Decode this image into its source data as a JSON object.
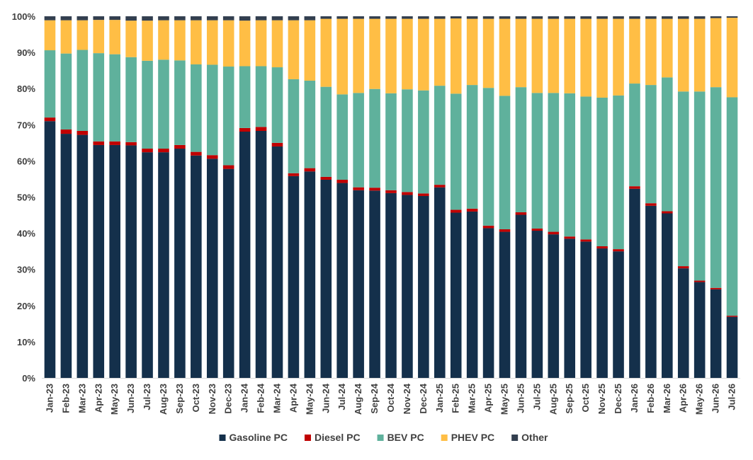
{
  "chart_data": {
    "type": "bar",
    "stacked": true,
    "normalized": true,
    "title": "",
    "xlabel": "",
    "ylabel": "",
    "ylim": [
      0,
      100
    ],
    "yticks": [
      "0%",
      "10%",
      "20%",
      "30%",
      "40%",
      "50%",
      "60%",
      "70%",
      "80%",
      "90%",
      "100%"
    ],
    "grid": false,
    "legend_position": "bottom",
    "categories": [
      "Jan-23",
      "Feb-23",
      "Mar-23",
      "Apr-23",
      "May-23",
      "Jun-23",
      "Jul-23",
      "Aug-23",
      "Sep-23",
      "Oct-23",
      "Nov-23",
      "Dec-23",
      "Jan-24",
      "Feb-24",
      "Mar-24",
      "Apr-24",
      "May-24",
      "Jun-24",
      "Jul-24",
      "Aug-24",
      "Sep-24",
      "Oct-24",
      "Nov-24",
      "Dec-24",
      "Jan-25",
      "Feb-25",
      "Mar-25",
      "Apr-25",
      "May-25",
      "Jun-25",
      "Jul-25",
      "Aug-25",
      "Sep-25",
      "Oct-25",
      "Nov-25",
      "Dec-25",
      "Jan-26",
      "Feb-26",
      "Mar-26",
      "Apr-26",
      "May-26",
      "Jun-26",
      "Jul-26"
    ],
    "series": [
      {
        "name": "Gasoline PC",
        "color": "#14304b",
        "values": [
          71.0,
          67.5,
          67.2,
          64.4,
          64.4,
          64.3,
          62.4,
          62.4,
          63.4,
          61.5,
          60.6,
          57.8,
          68.1,
          68.3,
          64.0,
          55.8,
          57.1,
          54.8,
          53.9,
          51.9,
          51.8,
          51.1,
          50.6,
          50.3,
          52.7,
          45.7,
          46.0,
          41.4,
          40.4,
          45.1,
          40.7,
          39.7,
          38.5,
          37.7,
          35.8,
          35.0,
          52.3,
          47.6,
          45.5,
          30.3,
          26.5,
          24.5,
          16.9
        ]
      },
      {
        "name": "Diesel PC",
        "color": "#c00000",
        "values": [
          1.0,
          1.2,
          1.1,
          1.0,
          1.0,
          0.9,
          1.0,
          1.0,
          1.0,
          1.0,
          1.0,
          1.0,
          1.0,
          1.1,
          1.0,
          0.8,
          0.9,
          0.8,
          0.9,
          0.8,
          0.8,
          0.8,
          0.8,
          0.7,
          0.7,
          0.8,
          0.8,
          0.7,
          0.7,
          0.7,
          0.6,
          0.7,
          0.6,
          0.6,
          0.6,
          0.6,
          0.7,
          0.7,
          0.6,
          0.6,
          0.4,
          0.4,
          0.3
        ]
      },
      {
        "name": "BEV PC",
        "color": "#5fb19c",
        "values": [
          18.6,
          21.0,
          22.4,
          24.4,
          24.1,
          23.5,
          24.3,
          24.6,
          23.4,
          24.2,
          25.0,
          27.3,
          17.1,
          16.8,
          20.9,
          26.0,
          24.2,
          24.9,
          23.6,
          26.1,
          27.3,
          26.8,
          28.4,
          28.5,
          27.4,
          32.1,
          34.2,
          38.1,
          36.9,
          34.6,
          37.5,
          38.4,
          39.6,
          39.5,
          41.1,
          42.5,
          28.4,
          32.7,
          37.0,
          48.3,
          52.3,
          55.5,
          60.4
        ]
      },
      {
        "name": "PHEV PC",
        "color": "#ffbe45",
        "values": [
          8.3,
          9.2,
          8.2,
          9.2,
          9.5,
          10.1,
          11.1,
          10.9,
          11.1,
          12.2,
          12.3,
          12.8,
          12.6,
          12.7,
          13.0,
          16.3,
          16.7,
          18.8,
          20.9,
          20.5,
          19.4,
          20.6,
          19.5,
          19.8,
          18.5,
          20.8,
          18.3,
          19.1,
          21.3,
          18.9,
          20.5,
          20.5,
          20.6,
          21.5,
          21.8,
          21.2,
          17.9,
          18.3,
          16.2,
          20.1,
          20.1,
          19.1,
          22.0
        ]
      },
      {
        "name": "Other",
        "color": "#333f4f",
        "values": [
          1.1,
          1.1,
          1.1,
          1.0,
          1.0,
          1.2,
          1.2,
          1.1,
          1.1,
          1.1,
          1.1,
          1.1,
          1.2,
          1.1,
          1.1,
          1.1,
          1.1,
          0.7,
          0.7,
          0.7,
          0.7,
          0.7,
          0.7,
          0.7,
          0.7,
          0.6,
          0.7,
          0.7,
          0.7,
          0.7,
          0.7,
          0.7,
          0.7,
          0.7,
          0.7,
          0.7,
          0.7,
          0.7,
          0.7,
          0.7,
          0.7,
          0.5,
          0.4
        ]
      }
    ]
  }
}
